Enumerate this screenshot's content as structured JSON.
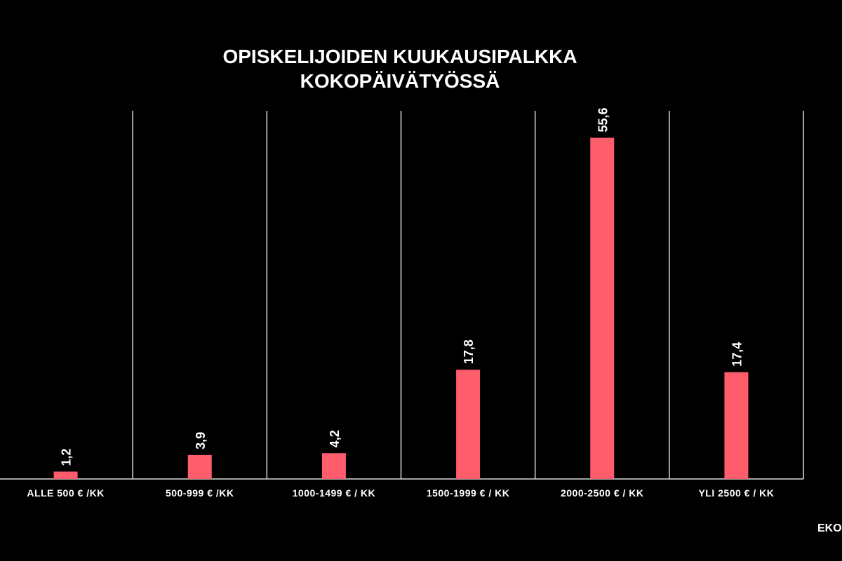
{
  "chart_data": {
    "type": "bar",
    "title": [
      "OPISKELIJOIDEN KUUKAUSIPALKKA",
      "KOKOPÄIVÄTYÖSSÄ"
    ],
    "categories": [
      "ALLE 500 € /KK",
      "500-999 € /KK",
      "1000-1499 € / KK",
      "1500-1999 € / KK",
      "2000-2500 € / KK",
      "YLI 2500 € / KK"
    ],
    "values": [
      1.2,
      3.9,
      4.2,
      17.8,
      55.6,
      17.4
    ],
    "value_labels": [
      "1,2",
      "3,9",
      "4,2",
      "17,8",
      "55,6",
      "17,4"
    ],
    "color": "#ff5c6c",
    "ylim": [
      0,
      60
    ],
    "footer": "EKO"
  }
}
